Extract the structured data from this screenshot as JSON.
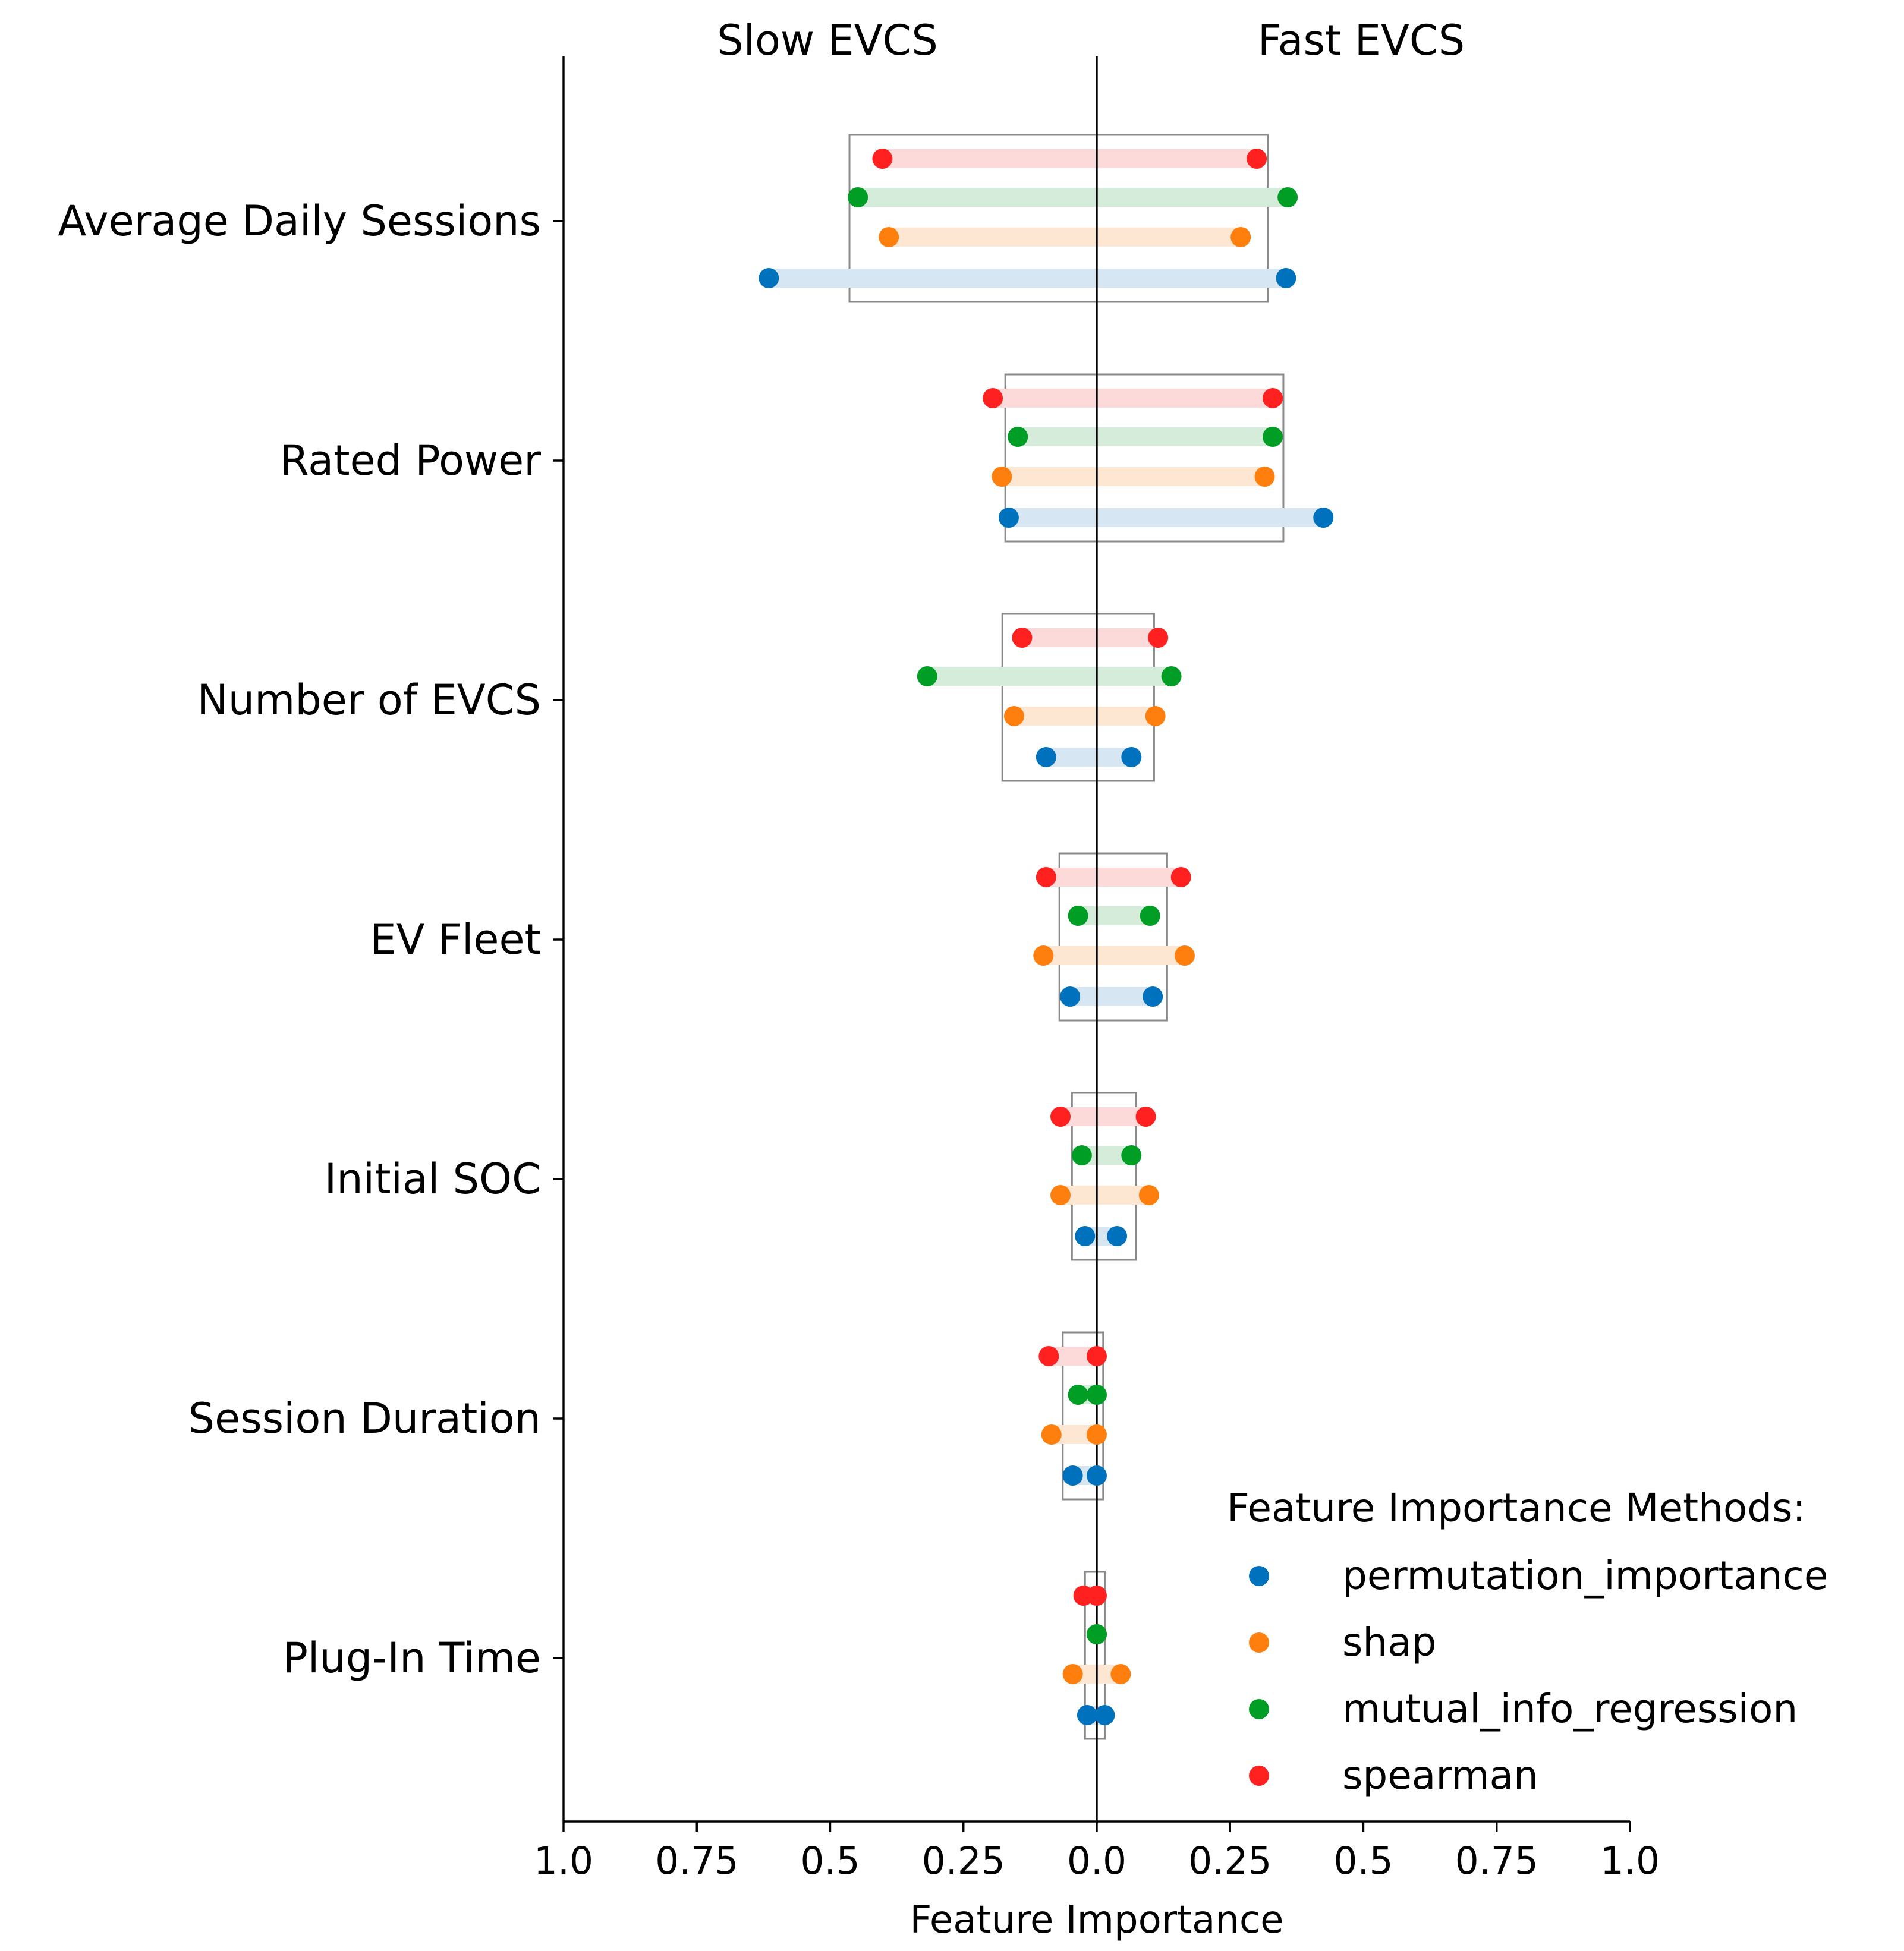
{
  "chart_data": {
    "type": "dumbbell",
    "title_left": "Slow EVCS",
    "title_right": "Fast EVCS",
    "xlabel": "Feature Importance",
    "xlim": [
      -1.0,
      1.0
    ],
    "x_ticks": [
      -1.0,
      -0.75,
      -0.5,
      -0.25,
      0.0,
      0.25,
      0.5,
      0.75,
      1.0
    ],
    "x_tick_labels": [
      "1.0",
      "0.75",
      "0.5",
      "0.25",
      "0.0",
      "0.25",
      "0.5",
      "0.75",
      "1.0"
    ],
    "categories": [
      "Average Daily Sessions",
      "Rated Power",
      "Number of EVCS",
      "EV Fleet",
      "Initial SOC",
      "Session Duration",
      "Plug-In Time"
    ],
    "legend": {
      "title": "Feature Importance Methods:",
      "position": "lower-right"
    },
    "series": [
      {
        "name": "permutation_importance",
        "color": "#0072bd",
        "line_color": "#d6e6f3",
        "slow": [
          0.615,
          0.165,
          0.095,
          0.05,
          0.022,
          0.045,
          0.018
        ],
        "fast": [
          0.355,
          0.425,
          0.065,
          0.105,
          0.038,
          0.0,
          0.015
        ]
      },
      {
        "name": "shap",
        "color": "#ff7f0e",
        "line_color": "#fde6d2",
        "slow": [
          0.39,
          0.178,
          0.155,
          0.1,
          0.068,
          0.085,
          0.045
        ],
        "fast": [
          0.27,
          0.315,
          0.11,
          0.165,
          0.098,
          0.0,
          0.045
        ]
      },
      {
        "name": "mutual_info_regression",
        "color": "#009e24",
        "line_color": "#d4ecd9",
        "slow": [
          0.448,
          0.148,
          0.318,
          0.035,
          0.028,
          0.035,
          0.0
        ],
        "fast": [
          0.358,
          0.33,
          0.14,
          0.1,
          0.065,
          0.0,
          0.0
        ]
      },
      {
        "name": "spearman",
        "color": "#ff2020",
        "line_color": "#fddada",
        "slow": [
          0.402,
          0.195,
          0.14,
          0.095,
          0.068,
          0.09,
          0.025
        ],
        "fast": [
          0.3,
          0.33,
          0.115,
          0.158,
          0.092,
          0.0,
          0.0
        ]
      }
    ]
  }
}
